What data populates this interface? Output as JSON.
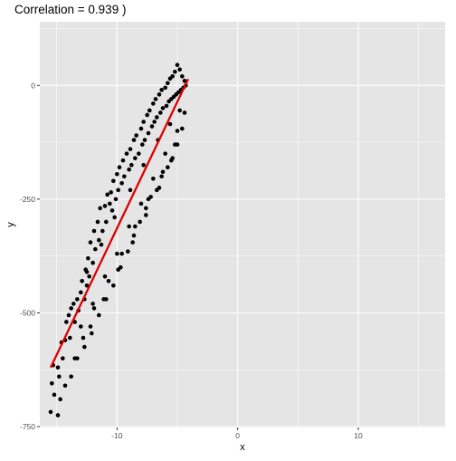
{
  "chart_data": {
    "type": "scatter",
    "title": "Correlation = 0.939 )",
    "xlabel": "x",
    "ylabel": "y",
    "xlim": [
      -16.4,
      17.2
    ],
    "ylim": [
      -752,
      140
    ],
    "x_ticks": [
      -10,
      0,
      10
    ],
    "x_tick_labels": [
      "-10",
      "0",
      "10"
    ],
    "y_ticks": [
      -750,
      -500,
      -250,
      0
    ],
    "y_tick_labels": [
      "-750",
      "-500",
      "-250",
      "0"
    ],
    "grid": true,
    "legend": "none",
    "colors": {
      "panel_background": "#e5e5e5",
      "grid": "#ffffff",
      "points": "#000000",
      "fit_line": "#dd0000"
    },
    "fit_line": {
      "x": [
        -15.5,
        -4.1
      ],
      "y": [
        -620,
        14
      ]
    },
    "points": {
      "x": [
        -15.5,
        -15.4,
        -15.3,
        -15.2,
        -14.9,
        -14.7,
        -14.8,
        -14.5,
        -14.6,
        -14.3,
        -14.2,
        -14.0,
        -13.8,
        -13.6,
        -13.5,
        -13.3,
        -13.2,
        -13.0,
        -12.9,
        -12.7,
        -12.6,
        -12.5,
        -12.4,
        -12.3,
        -12.2,
        -12.0,
        -11.9,
        -11.8,
        -11.6,
        -11.5,
        -11.4,
        -11.2,
        -11.0,
        -10.9,
        -10.8,
        -10.6,
        -10.5,
        -10.4,
        -10.3,
        -10.1,
        -10.0,
        -9.9,
        -9.8,
        -9.6,
        -9.5,
        -9.4,
        -9.2,
        -9.0,
        -8.9,
        -8.8,
        -8.6,
        -8.5,
        -8.4,
        -8.2,
        -8.0,
        -7.9,
        -7.8,
        -7.7,
        -7.5,
        -7.4,
        -7.3,
        -7.1,
        -7.0,
        -6.9,
        -6.8,
        -6.7,
        -6.5,
        -6.4,
        -6.3,
        -6.2,
        -6.0,
        -5.9,
        -5.8,
        -5.7,
        -5.6,
        -5.5,
        -5.4,
        -5.3,
        -5.2,
        -5.1,
        -5.0,
        -4.9,
        -4.8,
        -4.7,
        -4.6,
        -4.5,
        -4.4,
        -4.3,
        -4.4,
        -4.6,
        -5.0,
        -5.4,
        -5.8,
        -6.3,
        -6.7,
        -7.2,
        -7.6,
        -8.1,
        -8.6,
        -9.1,
        -9.7,
        -10.3,
        -10.9,
        -11.5,
        -12.1,
        -12.7,
        -13.3,
        -13.8,
        -14.3,
        -14.9,
        -13.9,
        -13.0,
        -12.0,
        -11.0,
        -10.0,
        -9.0,
        -8.0,
        -7.0,
        -6.0,
        -5.0,
        -12.8,
        -11.9,
        -10.7,
        -9.6,
        -8.5,
        -7.4,
        -6.2,
        -5.2,
        -13.5,
        -12.2,
        -11.1,
        -9.9,
        -8.7,
        -7.6,
        -6.5,
        -5.5,
        -4.8,
        -5.6,
        -6.6,
        -7.8,
        -8.9,
        -10.2,
        -11.3,
        -12.5
      ],
      "y": [
        -718,
        -655,
        -615,
        -680,
        -725,
        -690,
        -640,
        -600,
        -565,
        -560,
        -520,
        -505,
        -490,
        -480,
        -520,
        -470,
        -495,
        -455,
        -430,
        -470,
        -405,
        -440,
        -380,
        -420,
        -345,
        -390,
        -320,
        -360,
        -300,
        -340,
        -270,
        -320,
        -265,
        -300,
        -240,
        -260,
        -235,
        -275,
        -210,
        -250,
        -195,
        -230,
        -180,
        -215,
        -165,
        -200,
        -150,
        -185,
        -140,
        -175,
        -120,
        -160,
        -110,
        -150,
        -95,
        -130,
        -80,
        -120,
        -65,
        -105,
        -55,
        -90,
        -40,
        -80,
        -30,
        -70,
        -20,
        -60,
        -10,
        -50,
        -5,
        -45,
        5,
        -35,
        15,
        -30,
        20,
        -25,
        30,
        -20,
        45,
        -15,
        35,
        -10,
        20,
        -5,
        10,
        0,
        -60,
        -95,
        -130,
        -160,
        -180,
        -200,
        -230,
        -245,
        -270,
        -300,
        -330,
        -365,
        -400,
        -440,
        -470,
        -505,
        -545,
        -575,
        -600,
        -640,
        -660,
        -620,
        -555,
        -530,
        -480,
        -420,
        -370,
        -310,
        -260,
        -205,
        -150,
        -100,
        -555,
        -490,
        -430,
        -370,
        -310,
        -250,
        -190,
        -130,
        -600,
        -530,
        -470,
        -405,
        -345,
        -285,
        -225,
        -165,
        -55,
        -85,
        -120,
        -175,
        -230,
        -290,
        -350,
        -410
      ]
    }
  }
}
